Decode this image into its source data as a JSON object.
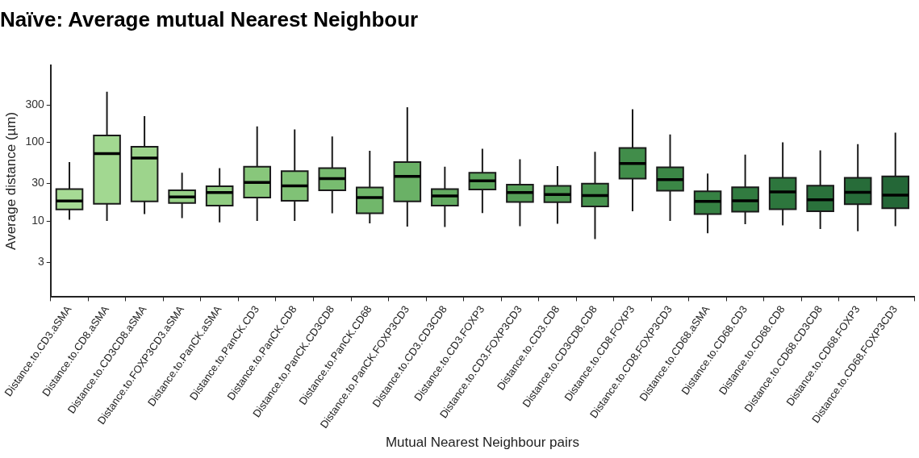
{
  "chart_data": {
    "type": "box",
    "title": "Naïve: Average mutual Nearest Neighbour",
    "xlabel": "Mutual Nearest Neighbour pairs",
    "ylabel": "Average distance (µm)",
    "categories": [
      "Distance.to.CD3.aSMA",
      "Distance.to.CD8.aSMA",
      "Distance.to.CD3CD8.aSMA",
      "Distance.to.FOXP3CD3.aSMA",
      "Distance.to.PanCK.aSMA",
      "Distance.to.PanCK.CD3",
      "Distance.to.PanCK.CD8",
      "Distance.to.PanCK.CD3CD8",
      "Distance.to.PanCK.CD68",
      "Distance.to.PanCK.FOXP3CD3",
      "Distance.to.CD3.CD3CD8",
      "Distance.to.CD3.FOXP3",
      "Distance.to.CD3.FOXP3CD3",
      "Distance.to.CD3.CD8",
      "Distance.to.CD3CD8.CD8",
      "Distance.to.CD8.FOXP3",
      "Distance.to.CD8.FOXP3CD3",
      "Distance.to.CD68.aSMA",
      "Distance.to.CD68.CD3",
      "Distance.to.CD68.CD8",
      "Distance.to.CD68.CD3CD8",
      "Distance.to.CD68.FOXP3",
      "Distance.to.CD68.FOXP3CD3"
    ],
    "boxes": [
      {
        "low": 10.4,
        "q1": 14,
        "median": 18,
        "q3": 25.5,
        "high": 56
      },
      {
        "low": 10,
        "q1": 16.5,
        "median": 72,
        "q3": 122,
        "high": 440
      },
      {
        "low": 12.2,
        "q1": 17.7,
        "median": 63,
        "q3": 88,
        "high": 215
      },
      {
        "low": 10.9,
        "q1": 16.9,
        "median": 20.2,
        "q3": 24.5,
        "high": 41
      },
      {
        "low": 9.6,
        "q1": 15.7,
        "median": 23,
        "q3": 27.7,
        "high": 47
      },
      {
        "low": 10,
        "q1": 19.8,
        "median": 31,
        "q3": 49,
        "high": 160
      },
      {
        "low": 10,
        "q1": 18.1,
        "median": 28,
        "q3": 43,
        "high": 146
      },
      {
        "low": 12.5,
        "q1": 24.5,
        "median": 34.5,
        "q3": 47,
        "high": 119
      },
      {
        "low": 9.3,
        "q1": 12.5,
        "median": 19.8,
        "q3": 26.7,
        "high": 78
      },
      {
        "low": 8.5,
        "q1": 17.7,
        "median": 37,
        "q3": 56,
        "high": 279
      },
      {
        "low": 8.4,
        "q1": 15.7,
        "median": 20.8,
        "q3": 25.5,
        "high": 49
      },
      {
        "low": 12.6,
        "q1": 25.2,
        "median": 32.4,
        "q3": 41,
        "high": 83
      },
      {
        "low": 8.6,
        "q1": 17.4,
        "median": 23,
        "q3": 29,
        "high": 61
      },
      {
        "low": 9.2,
        "q1": 17.3,
        "median": 21.7,
        "q3": 27.9,
        "high": 50
      },
      {
        "low": 5.9,
        "q1": 15.3,
        "median": 21,
        "q3": 29.8,
        "high": 76
      },
      {
        "low": 13.3,
        "q1": 34.5,
        "median": 54,
        "q3": 85,
        "high": 264
      },
      {
        "low": 10,
        "q1": 24.3,
        "median": 33.6,
        "q3": 48,
        "high": 126
      },
      {
        "low": 7,
        "q1": 12.2,
        "median": 17.7,
        "q3": 23.9,
        "high": 40
      },
      {
        "low": 9.1,
        "q1": 13.1,
        "median": 18.1,
        "q3": 26.9,
        "high": 70
      },
      {
        "low": 8.8,
        "q1": 14.1,
        "median": 23.4,
        "q3": 35.5,
        "high": 100
      },
      {
        "low": 7.9,
        "q1": 13.3,
        "median": 18.6,
        "q3": 28.2,
        "high": 79
      },
      {
        "low": 7.4,
        "q1": 16.3,
        "median": 23.2,
        "q3": 35.5,
        "high": 95
      },
      {
        "low": 8.6,
        "q1": 14.5,
        "median": 21.3,
        "q3": 36.8,
        "high": 133
      }
    ],
    "colors": [
      "#a6da95",
      "#a2d891",
      "#9dd48c",
      "#97d087",
      "#90cc81",
      "#88c77b",
      "#80c276",
      "#78bc70",
      "#71b76b",
      "#6ab166",
      "#63ab61",
      "#5ca55c",
      "#559f57",
      "#4e9952",
      "#47934e",
      "#418d4a",
      "#3b8746",
      "#368143",
      "#317b40",
      "#2d763d",
      "#2a713b",
      "#276c39",
      "#246737"
    ],
    "ylim": [
      1.1,
      950
    ],
    "yticks": [
      3,
      10,
      30,
      100,
      300
    ],
    "log": true
  }
}
